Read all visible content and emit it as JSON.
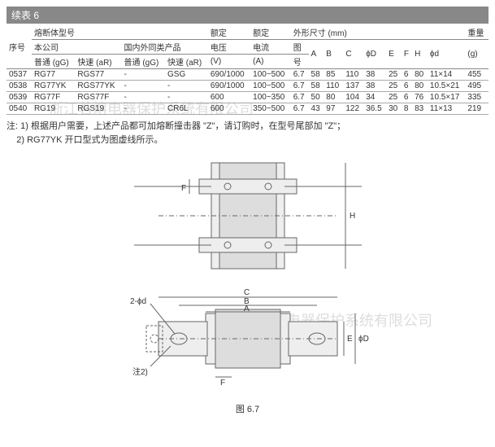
{
  "title": "续表 6",
  "headers": {
    "seq": "序号",
    "model": "熔断体型号",
    "rated_v": "额定",
    "rated_a": "额定",
    "dims": "外形尺寸 (mm)",
    "weight": "重量",
    "our": "本公司",
    "similar": "国内外同类产品",
    "voltage": "电压",
    "current": "电流",
    "fig": "图",
    "figno": "号",
    "gg1": "普通 (gG)",
    "ar1": "快速 (aR)",
    "gg2": "普通 (gG)",
    "ar2": "快速 (aR)",
    "v": "(V)",
    "a": "(A)",
    "g": "(g)",
    "A": "A",
    "B": "B",
    "C": "C",
    "phiD": "ϕD",
    "E": "E",
    "F": "F",
    "H": "H",
    "phid": "ϕd"
  },
  "rows": [
    {
      "seq": "0537",
      "gg1": "RG77",
      "ar1": "RGS77",
      "gg2": "-",
      "ar2": "GSG",
      "v": "690/1000",
      "a": "100~500",
      "fig": "6.7",
      "A": "58",
      "B": "85",
      "C": "110",
      "D": "38",
      "E": "25",
      "F": "6",
      "H": "80",
      "d": "11×14",
      "g": "455"
    },
    {
      "seq": "0538",
      "gg1": "RG77YK",
      "ar1": "RGS77YK",
      "gg2": "-",
      "ar2": "-",
      "v": "690/1000",
      "a": "100~500",
      "fig": "6.7",
      "A": "58",
      "B": "110",
      "C": "137",
      "D": "38",
      "E": "25",
      "F": "6",
      "H": "80",
      "d": "10.5×21",
      "g": "495"
    },
    {
      "seq": "0539",
      "gg1": "RG77F",
      "ar1": "RGS77F",
      "gg2": "-",
      "ar2": "-",
      "v": "600",
      "a": "100~350",
      "fig": "6.7",
      "A": "50",
      "B": "80",
      "C": "104",
      "D": "34",
      "E": "25",
      "F": "6",
      "H": "76",
      "d": "10.5×17",
      "g": "335"
    },
    {
      "seq": "0540",
      "gg1": "RG19",
      "ar1": "RGS19",
      "gg2": "-",
      "ar2": "CR6L",
      "v": "600",
      "a": "350~500",
      "fig": "6.7",
      "A": "43",
      "B": "97",
      "C": "122",
      "D": "36.5",
      "E": "30",
      "F": "8",
      "H": "83",
      "d": "11×13",
      "g": "219"
    }
  ],
  "notes": {
    "prefix": "注:",
    "n1": "1) 根据用户需要，上述产品都可加熔断撞击器 \"Z\"，请订购时，在型号尾部加 \"Z\"；",
    "n2": "2) RG77YK 开口型式为图虚线所示。"
  },
  "caption": "图 6.7",
  "diagram_labels": {
    "F": "F",
    "H": "H",
    "C": "C",
    "B": "B",
    "A": "A",
    "phid": "2-ϕd",
    "E": "E",
    "phiD": "ϕD",
    "note2": "注2)"
  },
  "watermark": "浙江茗熔电器保护系统有限公司",
  "svg": {
    "stroke": "#666",
    "fill": "#eee",
    "top_w": 360,
    "top_h": 160,
    "bot_w": 360,
    "bot_h": 120
  }
}
